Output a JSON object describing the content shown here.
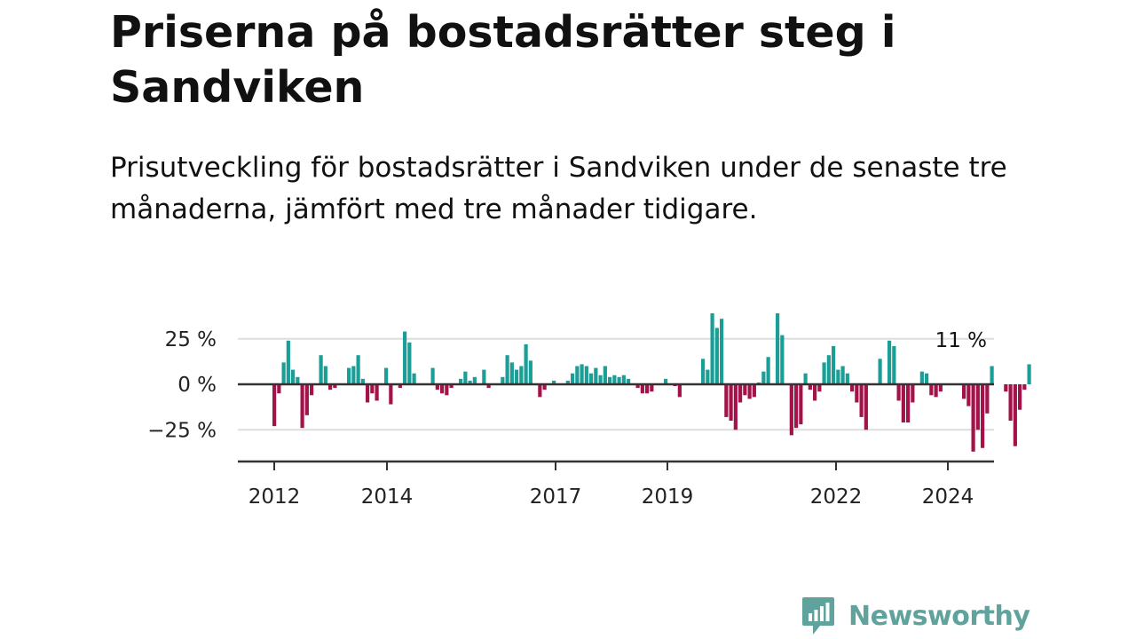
{
  "title": "Priserna på bostadsrätter steg i Sandviken",
  "subtitle": "Prisutveckling för bostadsrätter i Sandviken under de senaste tre månaderna, jämfört med tre månader tidigare.",
  "brand": {
    "name": "Newsworthy",
    "icon": "newsworthy-logo-icon",
    "color": "#5fa39c"
  },
  "colors": {
    "positive": "#1a9e96",
    "negative": "#a3134a",
    "gridline": "#dddddd",
    "zero_line": "#333333"
  },
  "chart_data": {
    "type": "bar",
    "title": "",
    "xlabel": "",
    "ylabel": "",
    "x_tick_labels": [
      "2012",
      "2014",
      "2017",
      "2019",
      "2022",
      "2024"
    ],
    "y_tick_labels": [
      "25 %",
      "0 %",
      "−25 %"
    ],
    "y_ticks": [
      25,
      0,
      -25
    ],
    "ylim": [
      -42,
      40
    ],
    "grid": true,
    "unit": "%",
    "annotation": {
      "text": "11 %",
      "value": 11,
      "attached_to": "last"
    },
    "x_start": "2011-12",
    "x_end": "2024-04",
    "values": [
      -23,
      -5,
      12,
      24,
      8,
      4,
      -24,
      -17,
      -6,
      0,
      16,
      10,
      -3,
      -2,
      0,
      0,
      9,
      10,
      16,
      3,
      -10,
      -5,
      -9,
      0,
      9,
      -11,
      0,
      -2,
      29,
      23,
      6,
      0,
      0,
      0,
      9,
      -3,
      -5,
      -6,
      -2,
      0,
      3,
      7,
      2,
      4,
      0,
      8,
      -2,
      0,
      0,
      4,
      16,
      12,
      8,
      10,
      22,
      13,
      0,
      -7,
      -3,
      0,
      2,
      0,
      0,
      2,
      6,
      10,
      11,
      10,
      6,
      9,
      5,
      10,
      4,
      5,
      4,
      5,
      3,
      0,
      -2,
      -5,
      -5,
      -4,
      0,
      0,
      3,
      0,
      -1,
      -7,
      0,
      0,
      0,
      0,
      14,
      8,
      39,
      31,
      36,
      -18,
      -20,
      -25,
      -10,
      -6,
      -8,
      -7,
      1,
      7,
      15,
      0,
      39,
      27,
      0,
      -28,
      -24,
      -22,
      6,
      -3,
      -9,
      -4,
      12,
      16,
      21,
      8,
      10,
      6,
      -4,
      -10,
      -18,
      -25,
      0,
      0,
      14,
      0,
      24,
      21,
      -9,
      -21,
      -21,
      -10,
      0,
      7,
      6,
      -6,
      -7,
      -4,
      0,
      0,
      0,
      0,
      -8,
      -12,
      -37,
      -25,
      -35,
      -16,
      10,
      0,
      0,
      -4,
      -20,
      -34,
      -14,
      -3,
      11
    ]
  }
}
